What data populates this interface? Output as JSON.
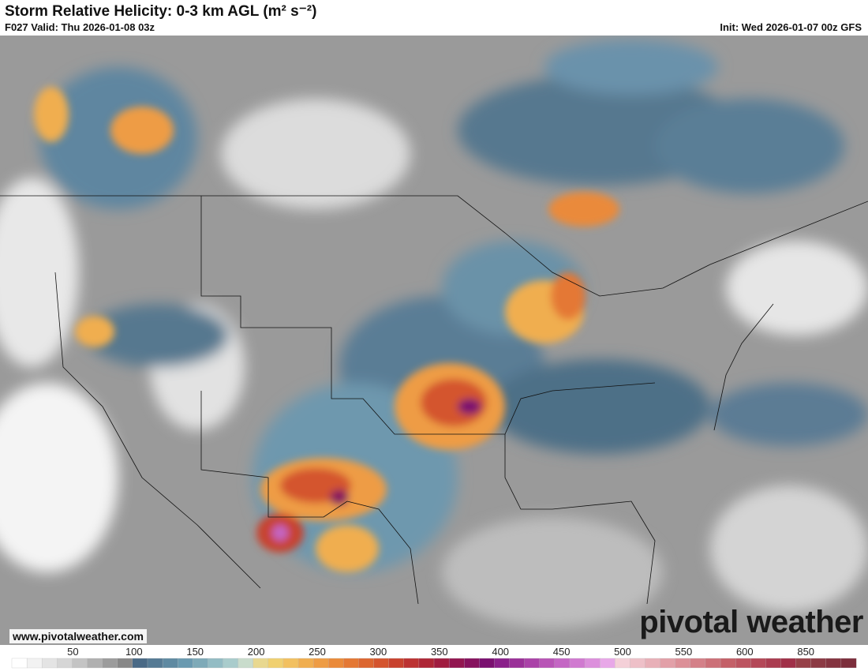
{
  "header": {
    "title": "Storm Relative Helicity: 0-3 km AGL (m² s⁻²)",
    "valid": "F027 Valid: Thu 2026-01-08 03z",
    "init": "Init: Wed 2026-01-07 00z GFS"
  },
  "watermark": {
    "website": "www.pivotalweather.com",
    "logo": "pivotal weather"
  },
  "colorbar": {
    "ticks": [
      50,
      100,
      150,
      200,
      250,
      300,
      350,
      400,
      450,
      500,
      550,
      600,
      850
    ],
    "colors": [
      "#ffffff",
      "#f2f2f2",
      "#e4e4e4",
      "#d6d6d6",
      "#c4c4c4",
      "#b0b0b0",
      "#9c9c9c",
      "#888888",
      "#4a6a86",
      "#557a94",
      "#5f8aa2",
      "#6a9ab0",
      "#7eaab8",
      "#93bcc4",
      "#a9cccc",
      "#c9dccc",
      "#e8d890",
      "#f0d070",
      "#f2c060",
      "#f0ae50",
      "#ee9c44",
      "#ea8a3a",
      "#e47834",
      "#dc6630",
      "#d4542e",
      "#c8422e",
      "#bc3232",
      "#ae2636",
      "#a01c40",
      "#921650",
      "#86125e",
      "#7a1070",
      "#8a208a",
      "#9a3098",
      "#aa42a8",
      "#b854b6",
      "#c466c4",
      "#d07ad0",
      "#dc90dc",
      "#e8a8e8",
      "#f4d0d8",
      "#eec0c8",
      "#e8b0b8",
      "#e2a0a8",
      "#dc9098",
      "#d48088",
      "#cc7078",
      "#c46068",
      "#bc5460",
      "#b44858",
      "#aa3c50",
      "#a03048",
      "#964048",
      "#8c3a44",
      "#843440",
      "#7c2e3c"
    ]
  }
}
